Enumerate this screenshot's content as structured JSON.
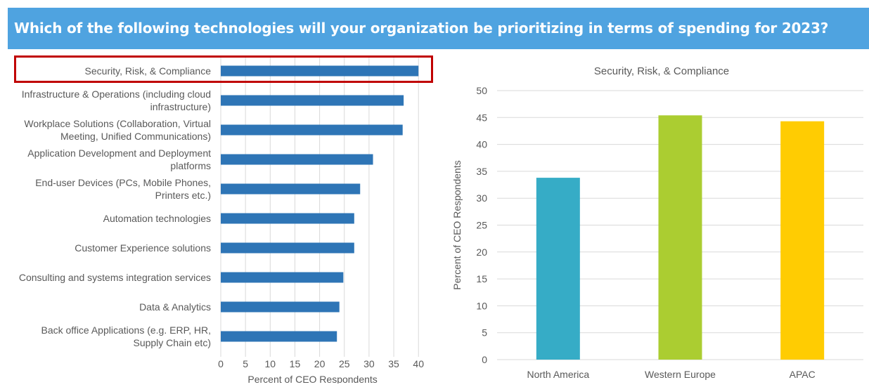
{
  "banner": {
    "title": "Which of the following technologies will your organization be prioritizing in terms of spending for 2023?"
  },
  "colors": {
    "banner": "#4fa3e0",
    "bar": "#2e75b6",
    "highlight": "#c00000",
    "grid": "#d9d9d9",
    "text": "#595959"
  },
  "chart_data": [
    {
      "type": "bar",
      "orientation": "horizontal",
      "categories": [
        [
          "Security, Risk, & Compliance"
        ],
        [
          "Infrastructure & Operations (including cloud",
          "infrastructure)"
        ],
        [
          "Workplace Solutions (Collaboration, Virtual",
          "Meeting, Unified Communications)"
        ],
        [
          "Application Development and Deployment",
          "platforms"
        ],
        [
          "End-user Devices (PCs, Mobile Phones,",
          "Printers etc.)"
        ],
        [
          "Automation technologies"
        ],
        [
          "Customer Experience solutions"
        ],
        [
          "Consulting and systems integration services"
        ],
        [
          "Data & Analytics"
        ],
        [
          "Back office Applications (e.g. ERP, HR,",
          "Supply Chain etc)"
        ]
      ],
      "values": [
        40,
        37,
        36.8,
        30.8,
        28.2,
        27,
        27,
        24.8,
        24,
        23.5
      ],
      "xlabel": "Percent of CEO Respondents",
      "xlim": [
        0,
        40
      ],
      "xticks": [
        "0",
        "5",
        "10",
        "15",
        "20",
        "25",
        "30",
        "35",
        "40"
      ],
      "grid": true,
      "highlighted_category": "Security, Risk, & Compliance"
    },
    {
      "type": "bar",
      "title": "Security, Risk, & Compliance",
      "categories": [
        "North America",
        "Western Europe",
        "APAC"
      ],
      "values": [
        33.8,
        45.4,
        44.3
      ],
      "colors": [
        "#36acc6",
        "#abcd31",
        "#ffcc02"
      ],
      "ylabel": "Percent of CEO Respondents",
      "ylim": [
        0,
        50
      ],
      "yticks": [
        "0",
        "5",
        "10",
        "15",
        "20",
        "25",
        "30",
        "35",
        "40",
        "45",
        "50"
      ],
      "grid": true
    }
  ]
}
